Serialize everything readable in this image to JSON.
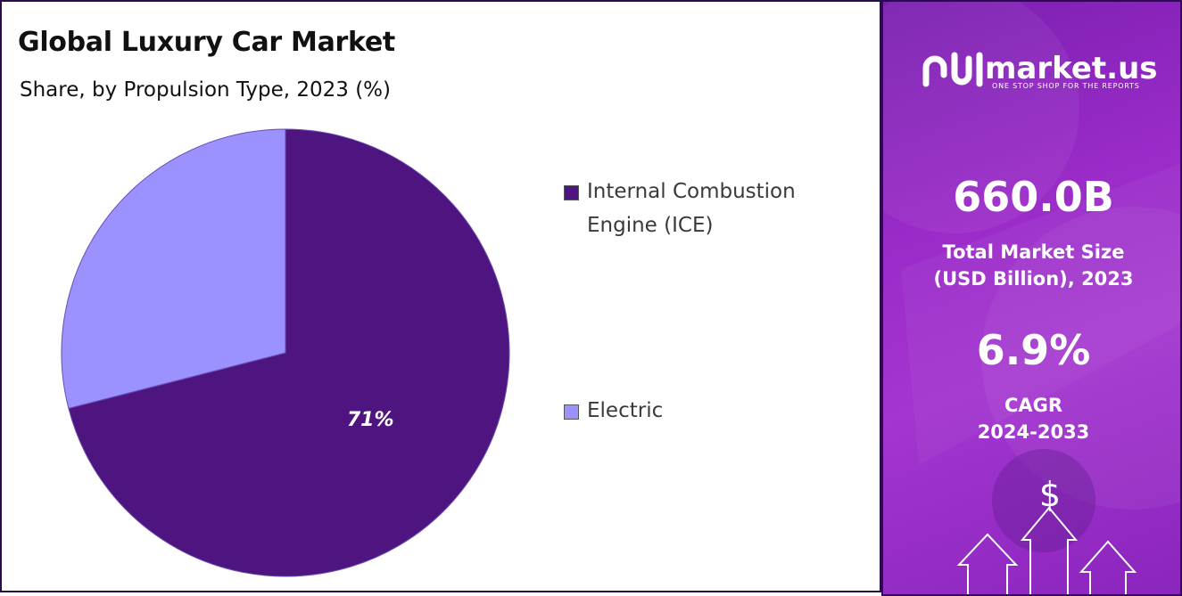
{
  "header": {
    "title": "Global Luxury Car Market",
    "subtitle": "Share, by Propulsion Type, 2023 (%)"
  },
  "chart_data": {
    "type": "pie",
    "title": "Global Luxury Car Market",
    "subtitle": "Share, by Propulsion Type, 2023 (%)",
    "slices": [
      {
        "label": "Internal Combustion Engine (ICE)",
        "value": 71,
        "display": "71%",
        "color": "#4e1480"
      },
      {
        "label": "Electric",
        "value": 29,
        "display": "",
        "color": "#9b91ff"
      }
    ],
    "legend_position": "right"
  },
  "legend": [
    {
      "label": "Internal Combustion Engine (ICE)",
      "color": "#4e1480"
    },
    {
      "label": "Electric",
      "color": "#9b91ff"
    }
  ],
  "side_panel": {
    "brand": "market.us",
    "tagline": "ONE STOP SHOP FOR THE REPORTS",
    "market_size_value": "660.0B",
    "market_size_label_line1": "Total Market Size",
    "market_size_label_line2": "(USD Billion), 2023",
    "cagr_value": "6.9%",
    "cagr_label_line1": "CAGR",
    "cagr_label_line2": "2024-2033",
    "dollar_symbol": "$",
    "icons": [
      "market-us-logo-icon",
      "dollar-icon",
      "up-arrow-icon"
    ]
  }
}
